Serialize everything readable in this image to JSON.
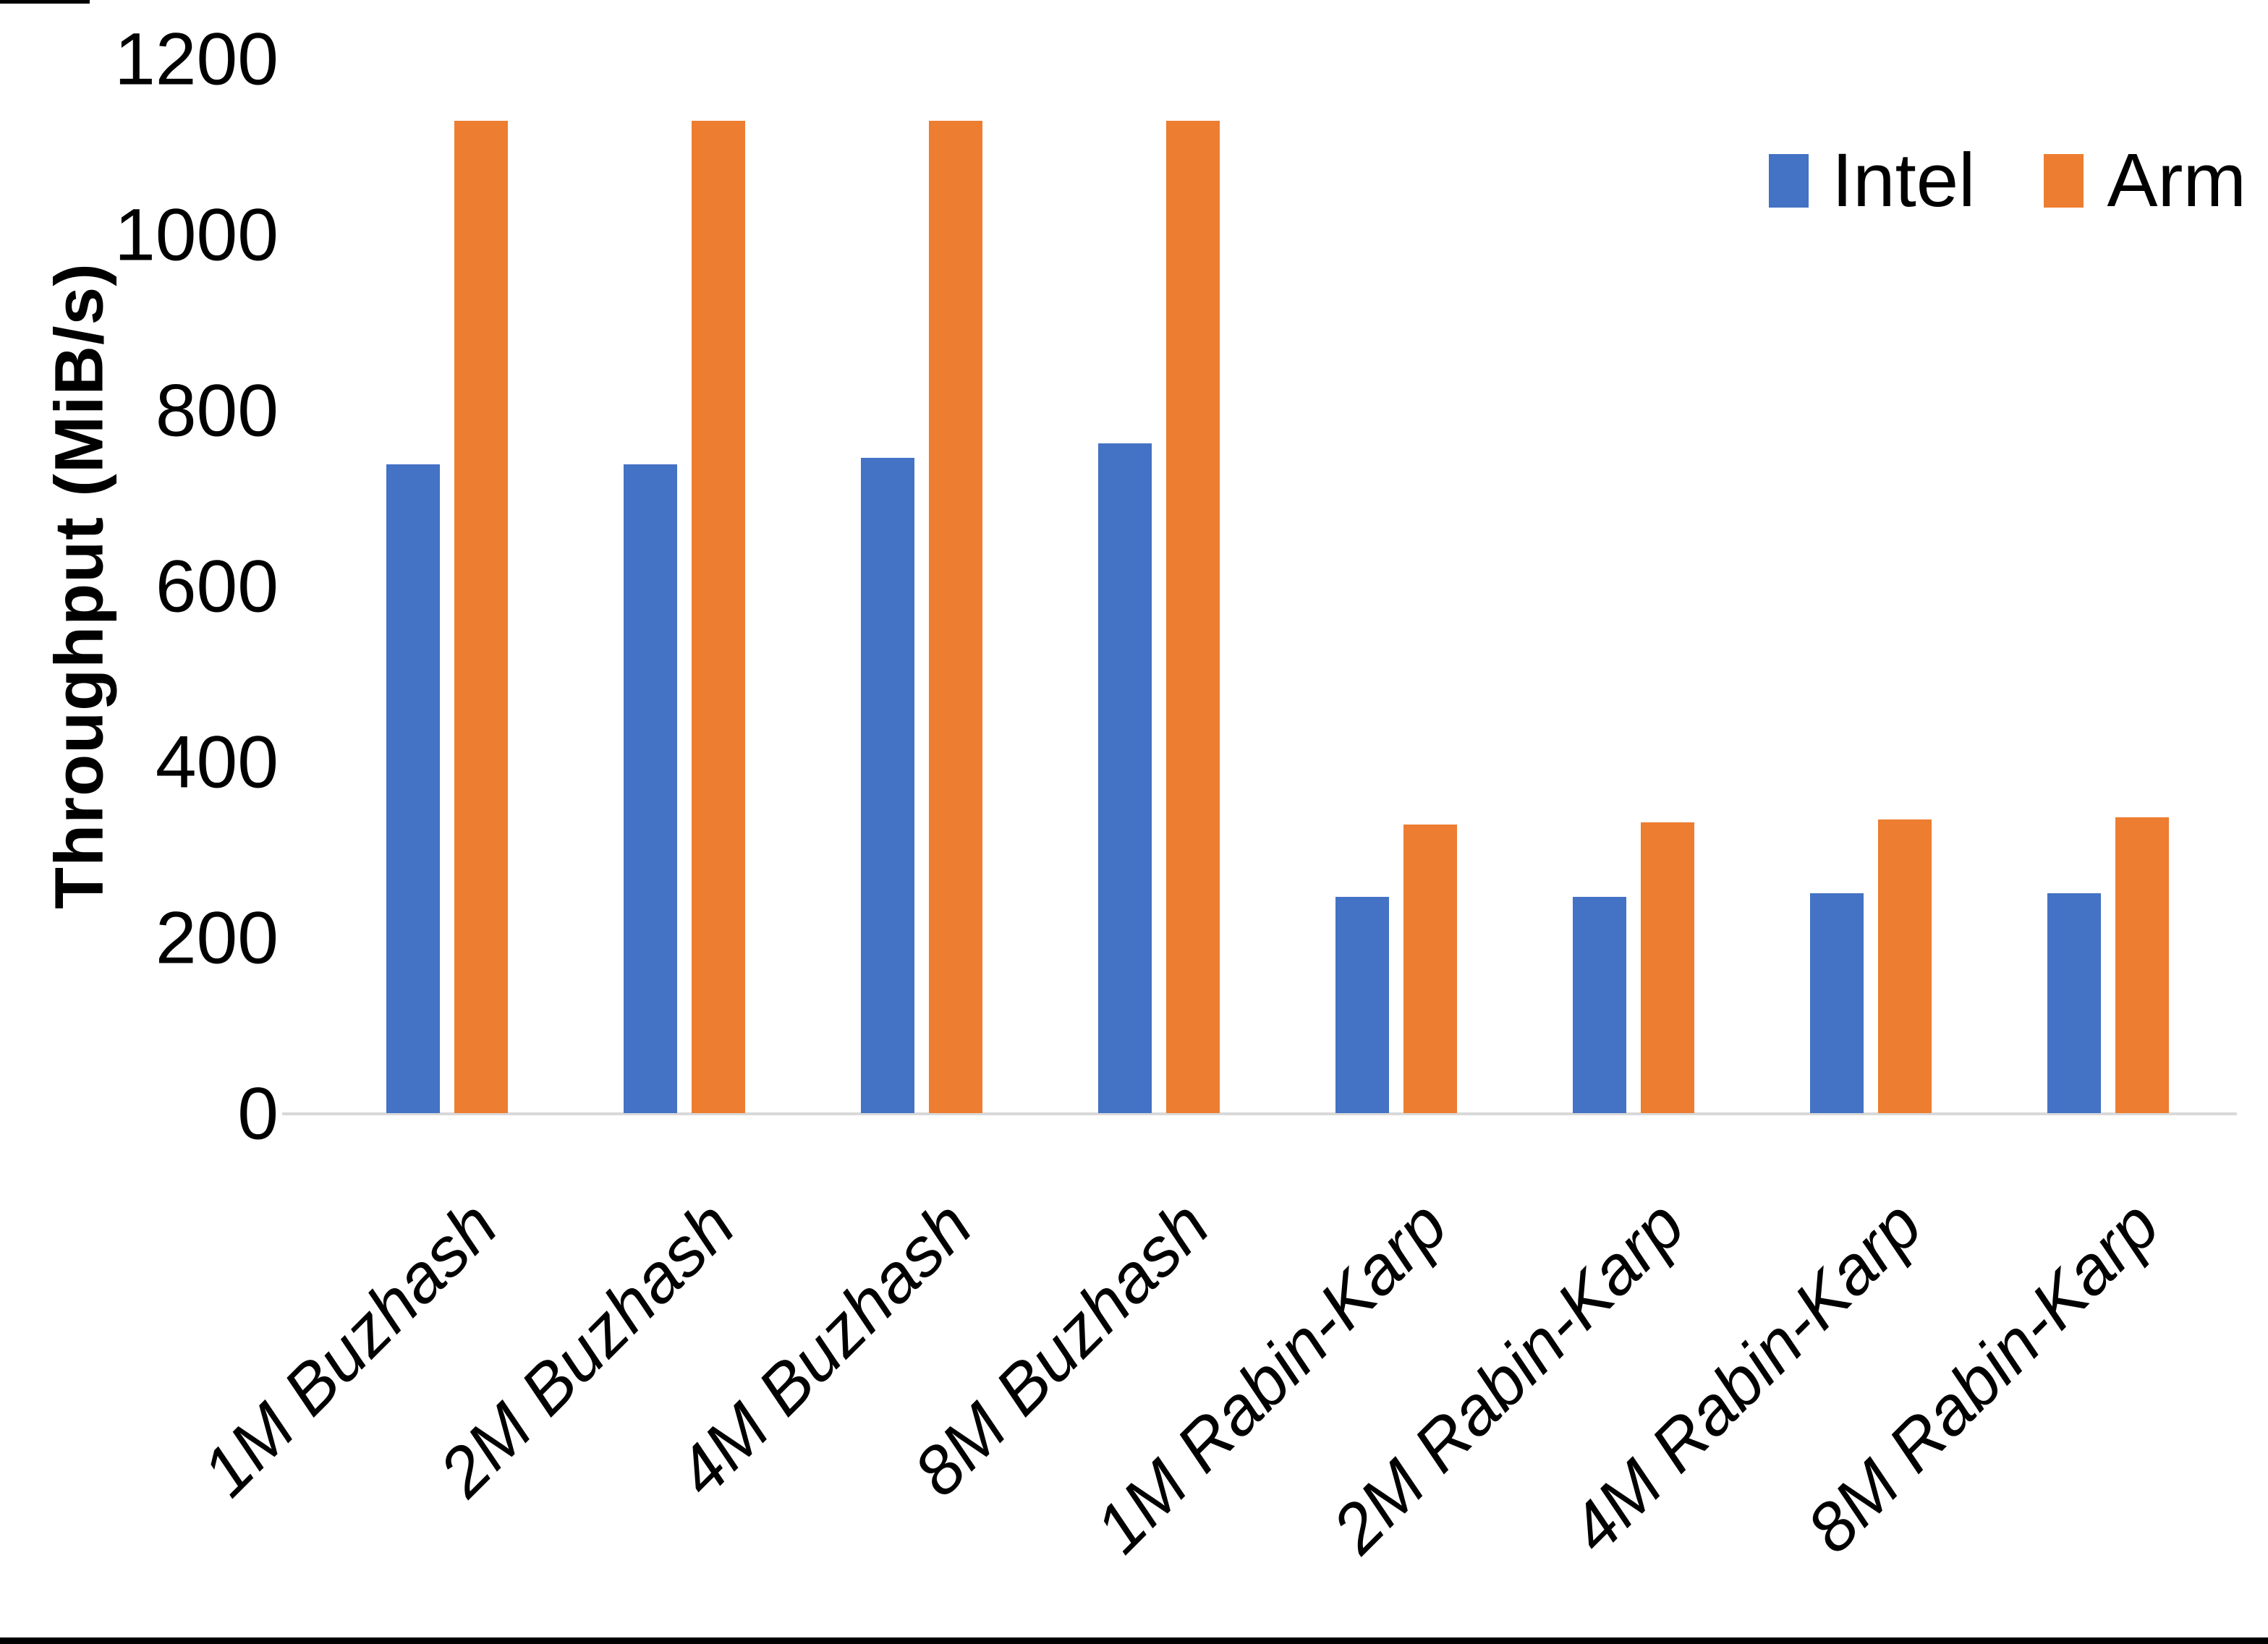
{
  "chart_data": {
    "type": "bar",
    "title": "",
    "xlabel": "",
    "ylabel": "Throughput (MiB/s)",
    "ylim": [
      0,
      1200
    ],
    "yticks": [
      0,
      200,
      400,
      600,
      800,
      1000,
      1200
    ],
    "grid": false,
    "legend_position": "top-right",
    "categories": [
      "1M Buzhash",
      "2M Buzhash",
      "4M Buzhash",
      "8M Buzhash",
      "1M Rabin-Karp",
      "2M Rabin-Karp",
      "4M Rabin-Karp",
      "8M Rabin-Karp"
    ],
    "series": [
      {
        "name": "Intel",
        "color": "#4472C4",
        "values": [
          738,
          738,
          746,
          762,
          246,
          246,
          250,
          250
        ]
      },
      {
        "name": "Arm",
        "color": "#ED7D31",
        "values": [
          1129,
          1129,
          1129,
          1129,
          328,
          331,
          334,
          337
        ]
      }
    ]
  },
  "colors": {
    "background": "#FFFFFF",
    "axis_line": "#D9D9D9",
    "text": "#000000",
    "frame": "#000000"
  }
}
